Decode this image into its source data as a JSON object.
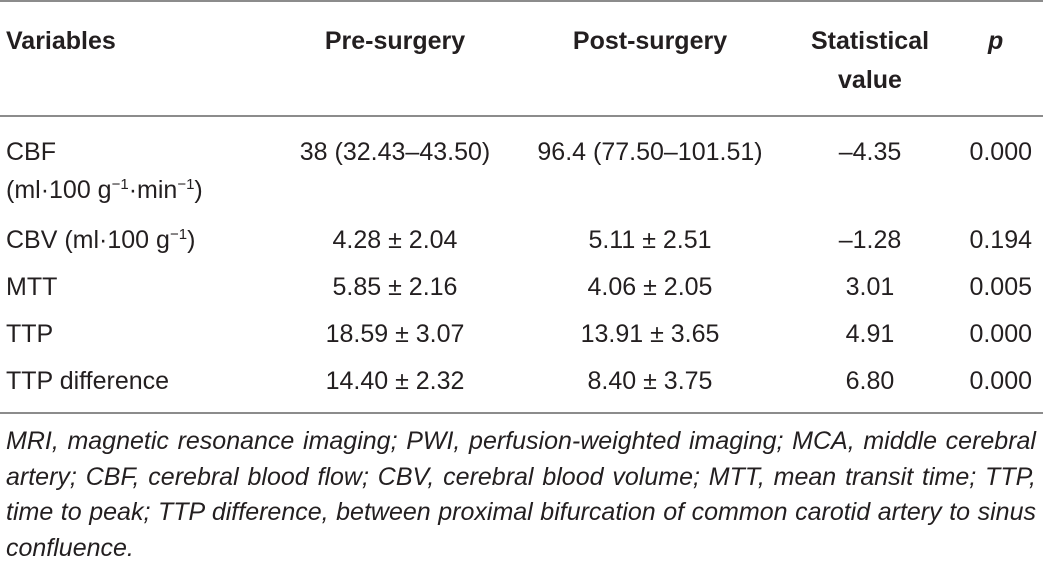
{
  "table": {
    "headers": {
      "variables": "Variables",
      "pre": "Pre-surgery",
      "post": "Post-surgery",
      "stat_line1": "Statistical",
      "stat_line2": "value",
      "p": "p"
    },
    "rows": [
      {
        "variable_line1": "CBF",
        "variable_line2_pre": "(ml·100 g",
        "variable_line2_sup1": "−1",
        "variable_line2_mid": "·min",
        "variable_line2_sup2": "−1",
        "variable_line2_post": ")",
        "pre": "38 (32.43–43.50)",
        "post": "96.4 (77.50–101.51)",
        "stat": "–4.35",
        "p": "0.000"
      },
      {
        "variable_pre": "CBV (ml·100 g",
        "variable_sup": "−1",
        "variable_post": ")",
        "pre": "4.28 ± 2.04",
        "post": "5.11 ± 2.51",
        "stat": "–1.28",
        "p": "0.194"
      },
      {
        "variable": "MTT",
        "pre": "5.85 ± 2.16",
        "post": "4.06 ± 2.05",
        "stat": "3.01",
        "p": "0.005"
      },
      {
        "variable": "TTP",
        "pre": "18.59 ± 3.07",
        "post": "13.91 ± 3.65",
        "stat": "4.91",
        "p": "0.000"
      },
      {
        "variable": "TTP difference",
        "pre": "14.40 ± 2.32",
        "post": "8.40 ± 3.75",
        "stat": "6.80",
        "p": "0.000"
      }
    ],
    "footnote": "MRI, magnetic resonance imaging; PWI, perfusion-weighted imaging; MCA, middle cerebral artery; CBF, cerebral blood flow; CBV, cerebral blood volume; MTT, mean transit time; TTP, time to peak; TTP difference, between proximal bifurcation of common carotid artery to sinus confluence."
  }
}
